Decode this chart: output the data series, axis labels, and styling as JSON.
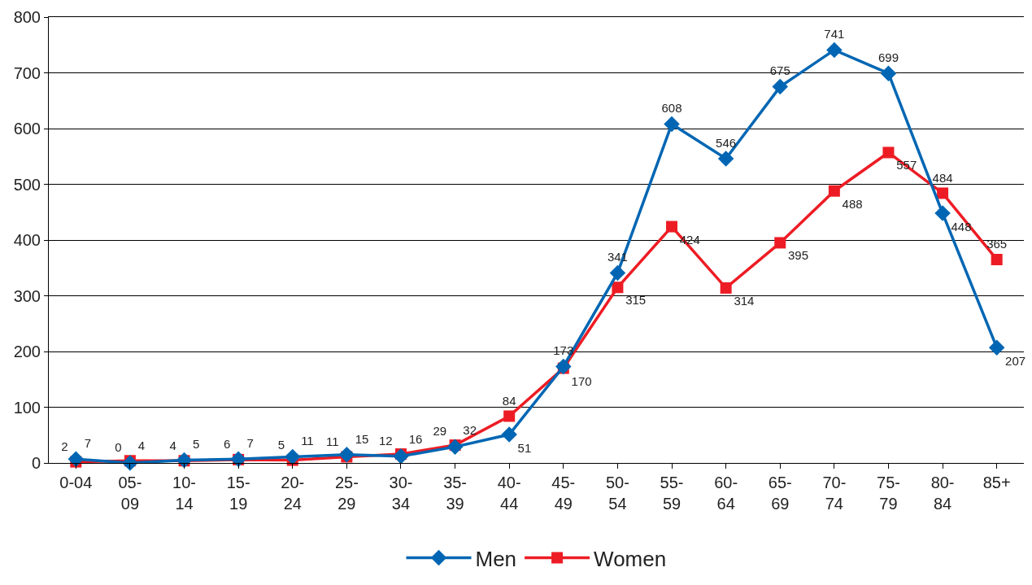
{
  "chart_data": {
    "type": "line",
    "categories": [
      "0-04",
      "05-09",
      "10-14",
      "15-19",
      "20-24",
      "25-29",
      "30-34",
      "35-39",
      "40-44",
      "45-49",
      "50-54",
      "55-59",
      "60-64",
      "65-69",
      "70-74",
      "75-79",
      "80-84",
      "85+"
    ],
    "series": [
      {
        "name": "Men",
        "color": "#0066b3",
        "marker": "diamond",
        "values": [
          7,
          0,
          5,
          7,
          11,
          15,
          12,
          29,
          51,
          173,
          341,
          608,
          546,
          675,
          741,
          699,
          448,
          207
        ]
      },
      {
        "name": "Women",
        "color": "#ed1c24",
        "marker": "square",
        "values": [
          2,
          4,
          4,
          6,
          5,
          11,
          16,
          32,
          84,
          170,
          315,
          424,
          314,
          395,
          488,
          557,
          484,
          365
        ]
      }
    ],
    "ylim": [
      0,
      800
    ],
    "yticks": [
      0,
      100,
      200,
      300,
      400,
      500,
      600,
      700,
      800
    ],
    "grid": "y",
    "legend": "bottom",
    "data_labels": true
  }
}
